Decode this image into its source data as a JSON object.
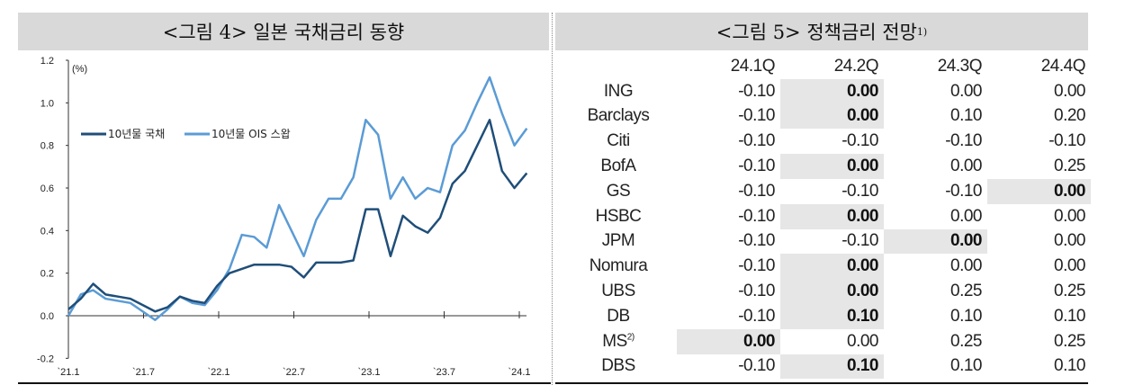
{
  "left_panel": {
    "title": "<그림 4> 일본 국채금리 동향"
  },
  "right_panel": {
    "title": "<그림 5> 정책금리 전망",
    "title_note": "1)"
  },
  "chart_data": {
    "type": "line",
    "unit_label": "(%)",
    "ylim": [
      -0.2,
      1.2
    ],
    "yticks": [
      "1.2",
      "1.0",
      "0.8",
      "0.6",
      "0.4",
      "0.2",
      "0.0",
      "-0.2"
    ],
    "xticks": [
      "`21.1",
      "`21.7",
      "`22.1",
      "`22.7",
      "`23.1",
      "`23.7",
      "`24.1"
    ],
    "legend_position": "upper-left",
    "grid": false,
    "x": [
      "21.1",
      "21.2",
      "21.3",
      "21.4",
      "21.5",
      "21.6",
      "21.7",
      "21.8",
      "21.9",
      "21.10",
      "21.11",
      "21.12",
      "22.1",
      "22.2",
      "22.3",
      "22.4",
      "22.5",
      "22.6",
      "22.7",
      "22.8",
      "22.9",
      "22.10",
      "22.11",
      "22.12",
      "23.1",
      "23.2",
      "23.3",
      "23.4",
      "23.5",
      "23.6",
      "23.7",
      "23.8",
      "23.9",
      "23.10",
      "23.11",
      "23.12",
      "24.1",
      "24.2"
    ],
    "series": [
      {
        "name": "10년물 국채",
        "color": "#1f4e79",
        "values": [
          0.03,
          0.08,
          0.15,
          0.1,
          0.09,
          0.08,
          0.05,
          0.02,
          0.04,
          0.09,
          0.07,
          0.06,
          0.14,
          0.2,
          0.22,
          0.24,
          0.24,
          0.24,
          0.23,
          0.18,
          0.25,
          0.25,
          0.25,
          0.26,
          0.5,
          0.5,
          0.28,
          0.47,
          0.42,
          0.39,
          0.46,
          0.62,
          0.68,
          0.8,
          0.92,
          0.68,
          0.6,
          0.67
        ]
      },
      {
        "name": "10년물 OIS 스왑",
        "color": "#5b9bd5",
        "values": [
          0.0,
          0.1,
          0.12,
          0.08,
          0.07,
          0.06,
          0.02,
          -0.02,
          0.03,
          0.09,
          0.06,
          0.05,
          0.12,
          0.22,
          0.38,
          0.37,
          0.32,
          0.52,
          0.4,
          0.28,
          0.45,
          0.55,
          0.55,
          0.65,
          0.92,
          0.85,
          0.55,
          0.65,
          0.55,
          0.6,
          0.58,
          0.8,
          0.87,
          1.0,
          1.12,
          0.95,
          0.8,
          0.88
        ]
      }
    ]
  },
  "table": {
    "columns": [
      "24.1Q",
      "24.2Q",
      "24.3Q",
      "24.4Q"
    ],
    "rows": [
      {
        "label": "ING",
        "sup": "",
        "values": [
          "-0.10",
          "0.00",
          "0.00",
          "0.00"
        ],
        "highlight": [
          1
        ]
      },
      {
        "label": "Barclays",
        "sup": "",
        "values": [
          "-0.10",
          "0.00",
          "0.10",
          "0.20"
        ],
        "highlight": [
          1
        ]
      },
      {
        "label": "Citi",
        "sup": "",
        "values": [
          "-0.10",
          "-0.10",
          "-0.10",
          "-0.10"
        ],
        "highlight": []
      },
      {
        "label": "BofA",
        "sup": "",
        "values": [
          "-0.10",
          "0.00",
          "0.00",
          "0.25"
        ],
        "highlight": [
          1
        ]
      },
      {
        "label": "GS",
        "sup": "",
        "values": [
          "-0.10",
          "-0.10",
          "-0.10",
          "0.00"
        ],
        "highlight": [
          3
        ]
      },
      {
        "label": "HSBC",
        "sup": "",
        "values": [
          "-0.10",
          "0.00",
          "0.00",
          "0.00"
        ],
        "highlight": [
          1
        ]
      },
      {
        "label": "JPM",
        "sup": "",
        "values": [
          "-0.10",
          "-0.10",
          "0.00",
          "0.00"
        ],
        "highlight": [
          2
        ]
      },
      {
        "label": "Nomura",
        "sup": "",
        "values": [
          "-0.10",
          "0.00",
          "0.00",
          "0.00"
        ],
        "highlight": [
          1
        ]
      },
      {
        "label": "UBS",
        "sup": "",
        "values": [
          "-0.10",
          "0.00",
          "0.25",
          "0.25"
        ],
        "highlight": [
          1
        ]
      },
      {
        "label": "DB",
        "sup": "",
        "values": [
          "-0.10",
          "0.10",
          "0.10",
          "0.10"
        ],
        "highlight": [
          1
        ]
      },
      {
        "label": "MS",
        "sup": "2)",
        "values": [
          "0.00",
          "0.00",
          "0.25",
          "0.25"
        ],
        "highlight": [
          0
        ]
      },
      {
        "label": "DBS",
        "sup": "",
        "values": [
          "-0.10",
          "0.10",
          "0.10",
          "0.10"
        ],
        "highlight": [
          1
        ]
      }
    ]
  }
}
